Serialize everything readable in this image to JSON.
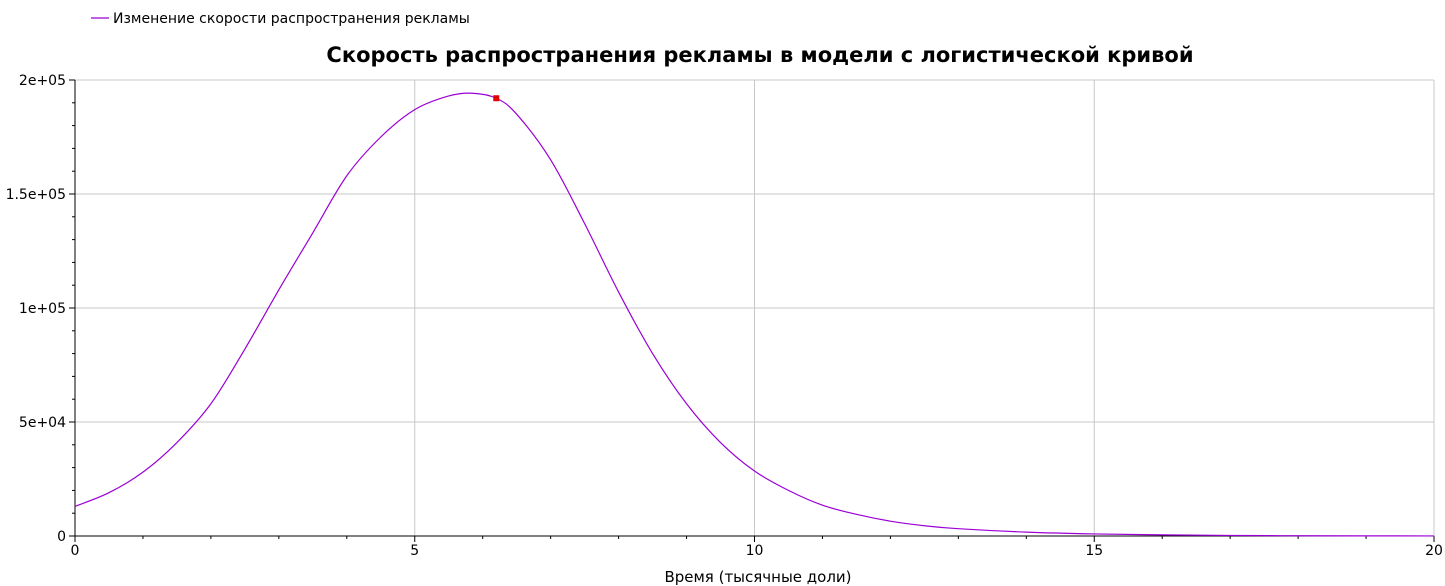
{
  "chart_data": {
    "type": "line",
    "title": "Скорость распространения рекламы в модели с логистической кривой",
    "xlabel": "Время (тысячные доли)",
    "ylabel": "",
    "xlim": [
      0,
      20
    ],
    "ylim": [
      0,
      200000
    ],
    "x_ticks": [
      0,
      5,
      10,
      15,
      20
    ],
    "x_tick_labels": [
      "0",
      "5",
      "10",
      "15",
      "20"
    ],
    "y_ticks": [
      0,
      50000,
      100000,
      150000,
      200000
    ],
    "y_tick_labels": [
      "0",
      "5e+04",
      "1e+05",
      "1.5e+05",
      "2e+05"
    ],
    "grid": true,
    "legend_position": "top-left",
    "series": [
      {
        "name": "Изменение скорости распространения рекламы",
        "color": "#9b00d6",
        "x": [
          0,
          0.5,
          1,
          1.5,
          2,
          2.5,
          3,
          3.5,
          4,
          4.5,
          5,
          5.5,
          5.85,
          6.2,
          6.5,
          7,
          7.5,
          8,
          8.5,
          9,
          9.5,
          10,
          10.5,
          11,
          11.5,
          12,
          12.5,
          13,
          14,
          15,
          16,
          17,
          18,
          19,
          20
        ],
        "y": [
          13000,
          19000,
          28000,
          41000,
          58000,
          82000,
          108000,
          133000,
          158000,
          175000,
          187000,
          193000,
          194200,
          192000,
          185000,
          165000,
          137000,
          107000,
          80000,
          58000,
          41000,
          28500,
          20000,
          13500,
          9500,
          6500,
          4500,
          3200,
          1700,
          900,
          500,
          250,
          120,
          60,
          30
        ]
      }
    ],
    "marker": {
      "x": 6.2,
      "y": 192000,
      "color": "#e00000"
    }
  }
}
